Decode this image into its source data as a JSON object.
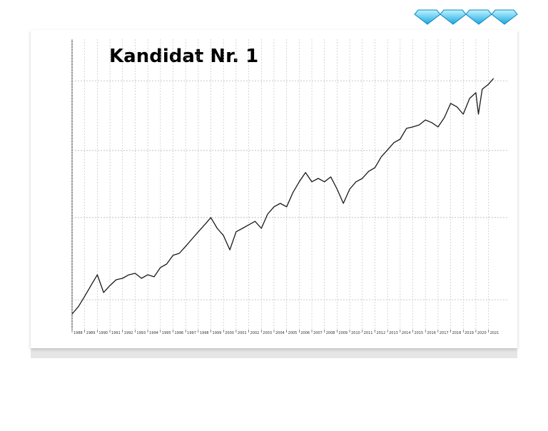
{
  "chart_data": {
    "type": "line",
    "title": "Kandidat Nr. 1",
    "x": [
      1988,
      1988.5,
      1989,
      1989.5,
      1990,
      1990.5,
      1991,
      1991.5,
      1992,
      1992.5,
      1993,
      1993.5,
      1994,
      1994.5,
      1995,
      1995.5,
      1996,
      1996.5,
      1997,
      1997.5,
      1998,
      1998.5,
      1999,
      1999.5,
      2000,
      2000.5,
      2001,
      2001.5,
      2002,
      2002.5,
      2003,
      2003.5,
      2004,
      2004.5,
      2005,
      2005.5,
      2006,
      2006.5,
      2007,
      2007.5,
      2008,
      2008.5,
      2009,
      2009.5,
      2010,
      2010.5,
      2011,
      2011.5,
      2012,
      2012.5,
      2013,
      2013.5,
      2014,
      2014.5,
      2015,
      2015.5,
      2016,
      2016.5,
      2017,
      2017.5,
      2018,
      2018.5,
      2019,
      2019.5,
      2020,
      2020.2,
      2020.5,
      2021,
      2021.4
    ],
    "series": [
      {
        "color": "#1a1a1a",
        "values": [
          5.4,
          7.9,
          11.5,
          15.2,
          18.9,
          12.8,
          15.2,
          17.2,
          17.7,
          18.9,
          19.4,
          17.7,
          18.9,
          18.2,
          21.4,
          22.6,
          25.6,
          26.3,
          28.7,
          31.2,
          33.7,
          36.1,
          38.6,
          34.9,
          32.4,
          27.5,
          33.7,
          34.9,
          36.1,
          37.3,
          34.9,
          39.8,
          42.3,
          43.5,
          42.3,
          47.2,
          50.9,
          54.1,
          50.9,
          52.1,
          50.9,
          52.6,
          48.4,
          43.5,
          48.4,
          50.9,
          52.1,
          54.5,
          55.8,
          59.5,
          61.9,
          64.4,
          65.6,
          69.3,
          69.8,
          70.5,
          72.2,
          71.3,
          69.8,
          73.0,
          77.9,
          76.7,
          74.2,
          79.6,
          81.6,
          74.2,
          82.8,
          84.5,
          86.5
        ]
      }
    ],
    "xlim": [
      1988,
      2021.7
    ],
    "xticks": [
      1988,
      1989,
      1990,
      1991,
      1992,
      1993,
      1994,
      1995,
      1996,
      1997,
      1998,
      1999,
      2000,
      2001,
      2002,
      2003,
      2004,
      2005,
      2006,
      2007,
      2008,
      2009,
      2010,
      2011,
      2012,
      2013,
      2014,
      2015,
      2016,
      2017,
      2018,
      2019,
      2020,
      2021
    ],
    "ylim": [
      0,
      100
    ],
    "yticks": [
      10.3,
      38.6,
      61.7,
      85.7
    ],
    "grid": true
  }
}
